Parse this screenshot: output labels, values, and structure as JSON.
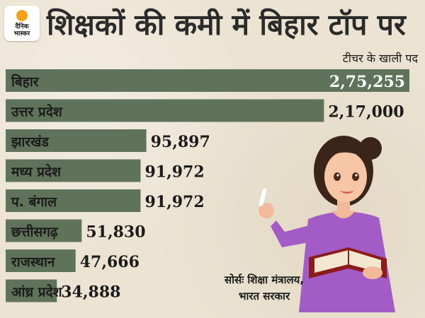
{
  "brand": {
    "line1": "दैनिक",
    "line2": "भास्कर"
  },
  "headline": "शिक्षकों की कमी में बिहार टॉप पर",
  "legend": "टीचर के खाली पद",
  "source": {
    "line1": "सोर्सः शिक्षा मंत्रालय,",
    "line2": "भारत सरकार"
  },
  "colors": {
    "bar": "#5f735b",
    "logo_sun": "#f7a21b",
    "background": "#ece3d2",
    "teacher_dress": "#a35bc6"
  },
  "chart_data": {
    "type": "bar",
    "orientation": "horizontal",
    "title": "शिक्षकों की कमी में बिहार टॉप पर",
    "legend": "टीचर के खाली पद",
    "categories": [
      "बिहार",
      "उत्तर प्रदेश",
      "झारखंड",
      "मध्य प्रदेश",
      "प. बंगाल",
      "छत्तीसगढ़",
      "राजस्थान",
      "आंध्र प्रदेश"
    ],
    "values": [
      275255,
      217000,
      95897,
      91972,
      91972,
      51830,
      47666,
      34888
    ],
    "value_labels": [
      "2,75,255",
      "2,17,000",
      "95,897",
      "91,972",
      "91,972",
      "51,830",
      "47,666",
      "34,888"
    ],
    "grid": false
  }
}
